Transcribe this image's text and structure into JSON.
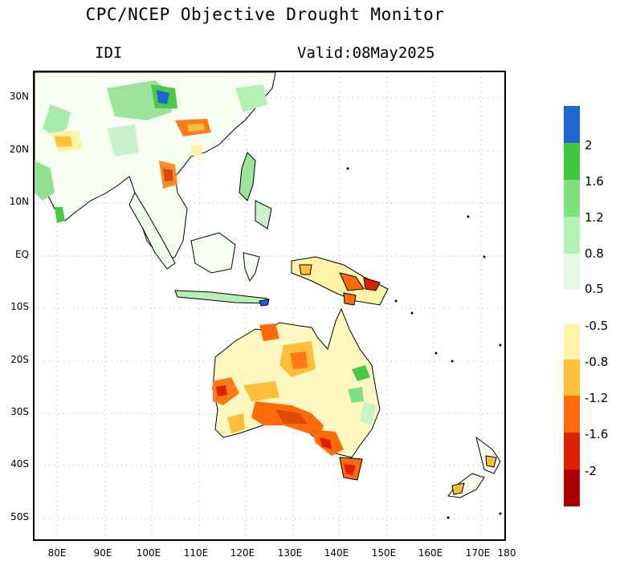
{
  "title": "CPC/NCEP Objective Drought Monitor",
  "subtitle_left": "IDI",
  "subtitle_right": "Valid:08May2025",
  "axes": {
    "lat_ticks": [
      "30N",
      "20N",
      "10N",
      "EQ",
      "10S",
      "20S",
      "30S",
      "40S",
      "50S"
    ],
    "lon_ticks": [
      "80E",
      "90E",
      "100E",
      "110E",
      "120E",
      "130E",
      "140E",
      "150E",
      "160E",
      "170E",
      "180"
    ]
  },
  "legend": {
    "wet_labels": [
      "2",
      "1.6",
      "1.2",
      "0.8",
      "0.5"
    ],
    "dry_labels": [
      "-0.5",
      "-0.8",
      "-1.2",
      "-1.6",
      "-2"
    ],
    "wet_colors": [
      "#1f66cc",
      "#3ec63e",
      "#7fe07f",
      "#b4f0b4",
      "#e3fae3"
    ],
    "dry_colors": [
      "#fff3a8",
      "#ffbf3a",
      "#ff6a0a",
      "#de2000",
      "#a80000"
    ]
  },
  "colors": {
    "land_outline": "#000000",
    "gridline": "#aaaaaa",
    "background": "#ffffff"
  }
}
